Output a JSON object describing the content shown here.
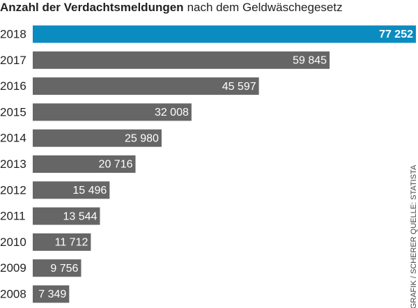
{
  "chart_data": {
    "type": "bar",
    "orientation": "horizontal",
    "title": "Anzahl der Verdachtsmeldungen",
    "subtitle": "nach dem Geldwäschegesetz",
    "source": "GRAFIK / SCHERER QUELLE: STATISTA",
    "categories": [
      "2018",
      "2017",
      "2016",
      "2015",
      "2014",
      "2013",
      "2012",
      "2011",
      "2010",
      "2009",
      "2008"
    ],
    "values": [
      77252,
      59845,
      45597,
      32008,
      25980,
      20716,
      15496,
      13544,
      11712,
      9756,
      7349
    ],
    "value_labels": [
      "77 252",
      "59 845",
      "45 597",
      "32 008",
      "25 980",
      "20 716",
      "15 496",
      "13 544",
      "11 712",
      "9 756",
      "7 349"
    ],
    "colors": [
      "#0b8cc1",
      "#666666",
      "#666666",
      "#666666",
      "#666666",
      "#666666",
      "#666666",
      "#666666",
      "#666666",
      "#666666",
      "#666666"
    ]
  }
}
